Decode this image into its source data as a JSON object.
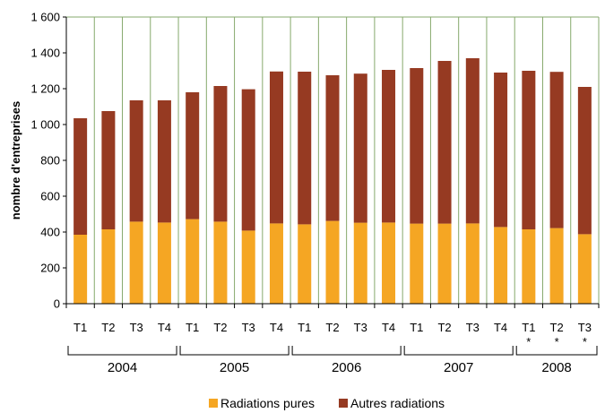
{
  "chart_data": {
    "type": "bar",
    "stacked": true,
    "ylabel": "nombre d'entreprises",
    "xlabel": "",
    "ylim": [
      0,
      1600
    ],
    "yticks": [
      0,
      200,
      400,
      600,
      800,
      1000,
      1200,
      1400,
      1600
    ],
    "ytick_labels": [
      "0",
      "200",
      "400",
      "600",
      "800",
      "1 000",
      "1 200",
      "1 400",
      "1 600"
    ],
    "grid": "vertical",
    "legend_position": "bottom",
    "categories": [
      "T1",
      "T2",
      "T3",
      "T4",
      "T1",
      "T2",
      "T3",
      "T4",
      "T1",
      "T2",
      "T3",
      "T4",
      "T1",
      "T2",
      "T3",
      "T4",
      "T1",
      "T2",
      "T3"
    ],
    "markers": [
      "",
      "",
      "",
      "",
      "",
      "",
      "",
      "",
      "",
      "",
      "",
      "",
      "",
      "",
      "",
      "",
      "*",
      "*",
      "*"
    ],
    "groups": [
      {
        "label": "2004",
        "count": 4
      },
      {
        "label": "2005",
        "count": 4
      },
      {
        "label": "2006",
        "count": 4
      },
      {
        "label": "2007",
        "count": 4
      },
      {
        "label": "2008",
        "count": 3
      }
    ],
    "series": [
      {
        "name": "Radiations pures",
        "color": "#F5A623",
        "values": [
          385,
          415,
          458,
          453,
          472,
          458,
          408,
          448,
          443,
          462,
          452,
          453,
          447,
          447,
          448,
          428,
          415,
          422,
          388
        ]
      },
      {
        "name": "Autres radiations",
        "color": "#963A22",
        "values": [
          650,
          660,
          677,
          682,
          708,
          757,
          789,
          848,
          852,
          813,
          832,
          852,
          868,
          908,
          922,
          862,
          885,
          872,
          822
        ]
      }
    ]
  }
}
